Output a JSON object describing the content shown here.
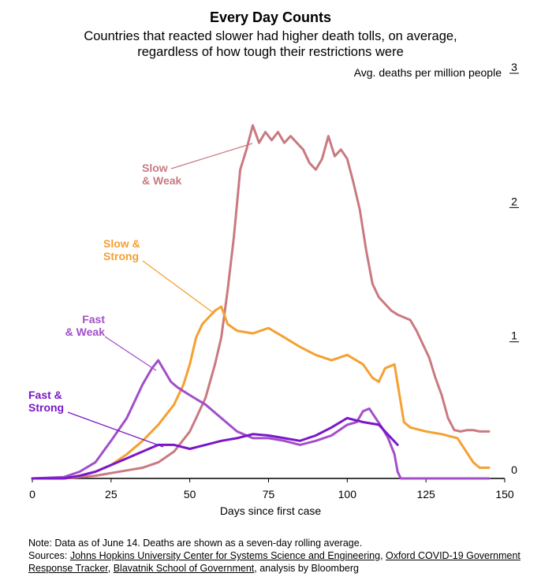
{
  "header": {
    "title": "Every Day Counts",
    "subtitle_lines": [
      "Countries that reacted slower had higher death tolls, on average,",
      "regardless of how tough their restrictions were"
    ]
  },
  "footer": {
    "note": "Note: Data as of June 14. Deaths are shown as a seven-day rolling average.",
    "sources_prefix": "Sources: ",
    "sources_links": [
      "Johns Hopkins University Center for Systems Science and Engineering",
      "Oxford COVID-19 Government Response Tracker",
      "Blavatnik School of Government"
    ],
    "sources_suffix": ", analysis by Bloomberg"
  },
  "chart_data": {
    "type": "line",
    "xlabel": "Days since first case",
    "ylabel": "Avg. deaths per million people",
    "xlim": [
      0,
      150
    ],
    "ylim": [
      0,
      3
    ],
    "xticks": [
      0,
      25,
      50,
      75,
      100,
      125,
      150
    ],
    "yticks": [
      0,
      1,
      2,
      3
    ],
    "grid": false,
    "y_axis_side": "right",
    "series": [
      {
        "name": "Slow & Weak",
        "color": "#c97a80",
        "x": [
          0,
          10,
          15,
          20,
          25,
          30,
          35,
          40,
          45,
          50,
          52,
          55,
          58,
          60,
          62,
          64,
          66,
          68,
          70,
          72,
          74,
          76,
          78,
          80,
          82,
          84,
          86,
          88,
          90,
          92,
          94,
          96,
          98,
          100,
          102,
          104,
          106,
          108,
          110,
          112,
          114,
          116,
          118,
          120,
          122,
          124,
          126,
          128,
          130,
          132,
          134,
          136,
          138,
          140,
          142,
          145
        ],
        "values": [
          0,
          0,
          0.01,
          0.02,
          0.04,
          0.06,
          0.08,
          0.12,
          0.2,
          0.35,
          0.45,
          0.6,
          0.85,
          1.05,
          1.4,
          1.8,
          2.3,
          2.45,
          2.63,
          2.5,
          2.58,
          2.52,
          2.58,
          2.5,
          2.55,
          2.5,
          2.45,
          2.35,
          2.3,
          2.38,
          2.55,
          2.4,
          2.45,
          2.38,
          2.2,
          2.0,
          1.7,
          1.45,
          1.35,
          1.3,
          1.25,
          1.22,
          1.2,
          1.18,
          1.1,
          1.0,
          0.9,
          0.75,
          0.62,
          0.45,
          0.36,
          0.35,
          0.36,
          0.36,
          0.35,
          0.35
        ]
      },
      {
        "name": "Slow & Strong",
        "color": "#f5a031",
        "x": [
          0,
          10,
          15,
          20,
          25,
          30,
          35,
          40,
          45,
          48,
          50,
          52,
          54,
          56,
          58,
          60,
          62,
          65,
          70,
          75,
          80,
          85,
          90,
          95,
          100,
          105,
          108,
          110,
          112,
          115,
          118,
          120,
          125,
          130,
          135,
          140,
          142,
          145
        ],
        "values": [
          0,
          0,
          0.02,
          0.05,
          0.1,
          0.18,
          0.28,
          0.4,
          0.55,
          0.7,
          0.85,
          1.05,
          1.15,
          1.2,
          1.25,
          1.28,
          1.15,
          1.1,
          1.08,
          1.12,
          1.05,
          0.98,
          0.92,
          0.88,
          0.92,
          0.85,
          0.75,
          0.72,
          0.82,
          0.85,
          0.42,
          0.38,
          0.35,
          0.33,
          0.3,
          0.12,
          0.08,
          0.08
        ]
      },
      {
        "name": "Fast & Weak",
        "color": "#a24fc9",
        "x": [
          0,
          10,
          15,
          20,
          25,
          30,
          35,
          38,
          40,
          42,
          44,
          46,
          48,
          50,
          55,
          60,
          65,
          70,
          75,
          80,
          85,
          90,
          95,
          100,
          103,
          105,
          107,
          109,
          111,
          113,
          115,
          116,
          117,
          120,
          130,
          145
        ],
        "values": [
          0,
          0.01,
          0.05,
          0.12,
          0.28,
          0.45,
          0.7,
          0.82,
          0.88,
          0.8,
          0.72,
          0.68,
          0.65,
          0.62,
          0.55,
          0.45,
          0.35,
          0.3,
          0.3,
          0.28,
          0.25,
          0.28,
          0.32,
          0.4,
          0.42,
          0.5,
          0.52,
          0.45,
          0.38,
          0.3,
          0.18,
          0.05,
          0.0,
          0.0,
          0.0,
          0.0
        ]
      },
      {
        "name": "Fast & Strong",
        "color": "#7a17c9",
        "x": [
          0,
          10,
          15,
          20,
          25,
          30,
          35,
          40,
          45,
          50,
          55,
          60,
          65,
          70,
          75,
          80,
          85,
          90,
          95,
          100,
          105,
          110,
          112,
          114,
          116
        ],
        "values": [
          0,
          0,
          0.02,
          0.05,
          0.1,
          0.15,
          0.2,
          0.25,
          0.25,
          0.22,
          0.25,
          0.28,
          0.3,
          0.33,
          0.32,
          0.3,
          0.28,
          0.32,
          0.38,
          0.45,
          0.42,
          0.4,
          0.35,
          0.3,
          0.25
        ]
      }
    ],
    "annotations": [
      {
        "series": "Slow & Weak",
        "lines": [
          "Slow",
          "& Weak"
        ],
        "align": "left"
      },
      {
        "series": "Slow & Strong",
        "lines": [
          "Slow &",
          "Strong"
        ],
        "align": "left"
      },
      {
        "series": "Fast & Weak",
        "lines": [
          "Fast",
          "& Weak"
        ],
        "align": "right"
      },
      {
        "series": "Fast & Strong",
        "lines": [
          "Fast &",
          "Strong"
        ],
        "align": "left"
      }
    ]
  }
}
